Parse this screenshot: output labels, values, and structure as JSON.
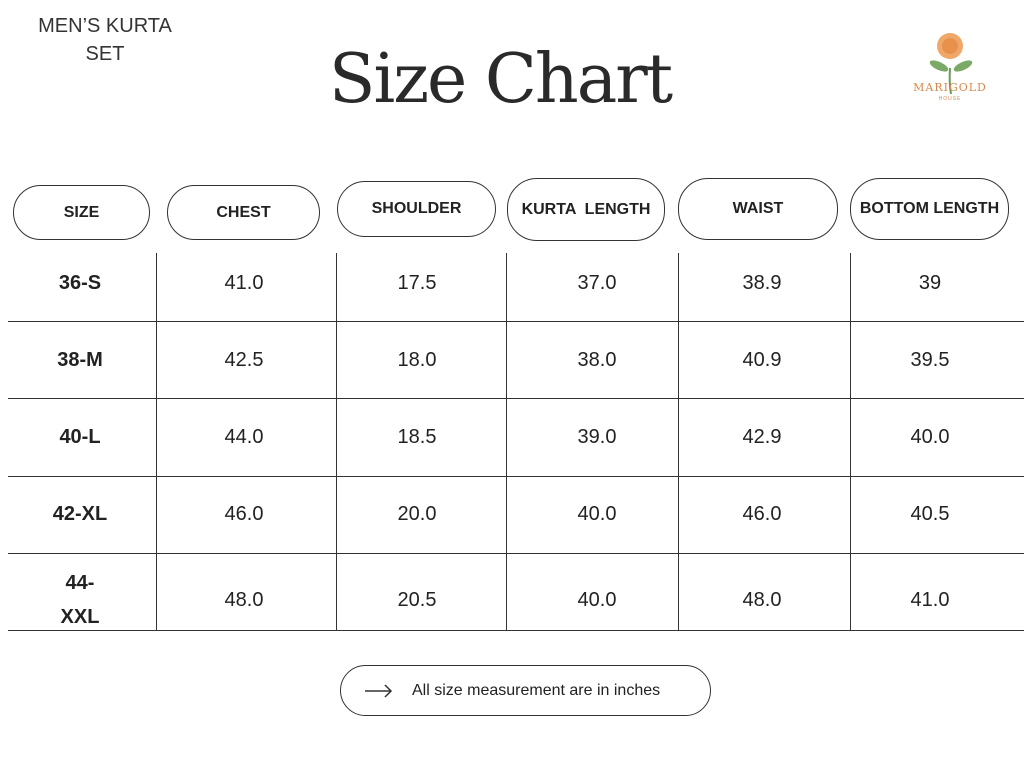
{
  "header": {
    "subtitle": "MEN’S KURTA SET",
    "title": "Size Chart",
    "logo": {
      "name": "MARIGOLD",
      "tagline": "HOUSE"
    }
  },
  "table": {
    "columns": [
      "SIZE",
      "CHEST",
      "SHOULDER",
      "KURTA  LENGTH",
      "WAIST",
      "BOTTOM LENGTH"
    ],
    "rows": [
      [
        "36-S",
        "41.0",
        "17.5",
        "37.0",
        "38.9",
        "39"
      ],
      [
        "38-M",
        "42.5",
        "18.0",
        "38.0",
        "40.9",
        "39.5"
      ],
      [
        "40-L",
        "44.0",
        "18.5",
        "39.0",
        "42.9",
        "40.0"
      ],
      [
        "42-XL",
        "46.0",
        "20.0",
        "40.0",
        "46.0",
        "40.5"
      ],
      [
        "44-XXL",
        "48.0",
        "20.5",
        "40.0",
        "48.0",
        "41.0"
      ]
    ]
  },
  "note": "All size measurement are in inches"
}
